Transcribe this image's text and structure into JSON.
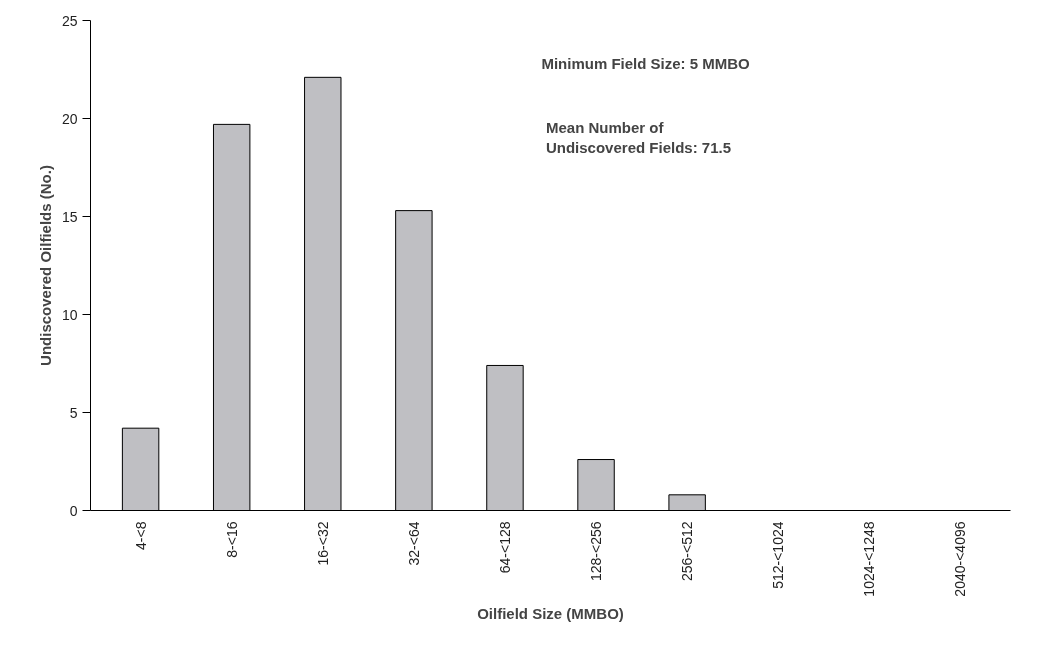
{
  "chart_data": {
    "type": "bar",
    "xlabel": "Oilfield Size (MMBO)",
    "ylabel": "Undiscovered Oilfields (No.)",
    "categories": [
      "4-<8",
      "8-<16",
      "16-<32",
      "32-<64",
      "64-<128",
      "128-<256",
      "256-<512",
      "512-<1024",
      "1024-<1248",
      "2040-<4096"
    ],
    "values": [
      4.2,
      19.7,
      22.1,
      15.3,
      7.4,
      2.6,
      0.8,
      0,
      0,
      0
    ],
    "color": "#bfbfc3",
    "ylim": [
      0,
      25
    ],
    "yticks": [
      0,
      5,
      10,
      15,
      20,
      25
    ],
    "grid": false,
    "annotations": [
      "Minimum Field Size: 5 MMBO",
      "Mean Number of\nUndiscovered Fields: 71.5"
    ]
  }
}
